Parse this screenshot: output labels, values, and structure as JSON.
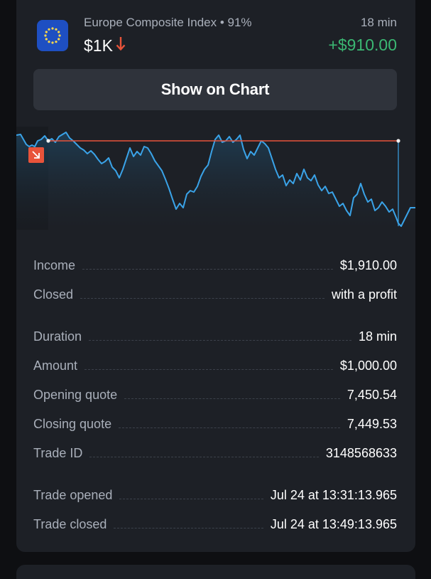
{
  "trade": {
    "asset_name": "Europe Composite Index • 91%",
    "duration_short": "18 min",
    "amount_short": "$1K",
    "direction_icon": "arrow-down-icon",
    "profit": "+$910.00",
    "show_chart_label": "Show on Chart"
  },
  "colors": {
    "profit_green": "#3bb873",
    "loss_red": "#e8533a",
    "line_blue": "#3aa3e8",
    "strike_line": "#e8533a",
    "flag_blue": "#1e4fc2"
  },
  "details": [
    {
      "label": "Income",
      "value": "$1,910.00"
    },
    {
      "label": "Closed",
      "value": "with a profit"
    },
    {
      "label": "Duration",
      "value": "18 min"
    },
    {
      "label": "Amount",
      "value": "$1,000.00"
    },
    {
      "label": "Opening quote",
      "value": "7,450.54"
    },
    {
      "label": "Closing quote",
      "value": "7,449.53"
    },
    {
      "label": "Trade ID",
      "value": "3148568633"
    },
    {
      "label": "Trade opened",
      "value": "Jul 24 at 13:31:13.965"
    },
    {
      "label": "Trade closed",
      "value": "Jul 24 at 13:49:13.965"
    }
  ]
}
